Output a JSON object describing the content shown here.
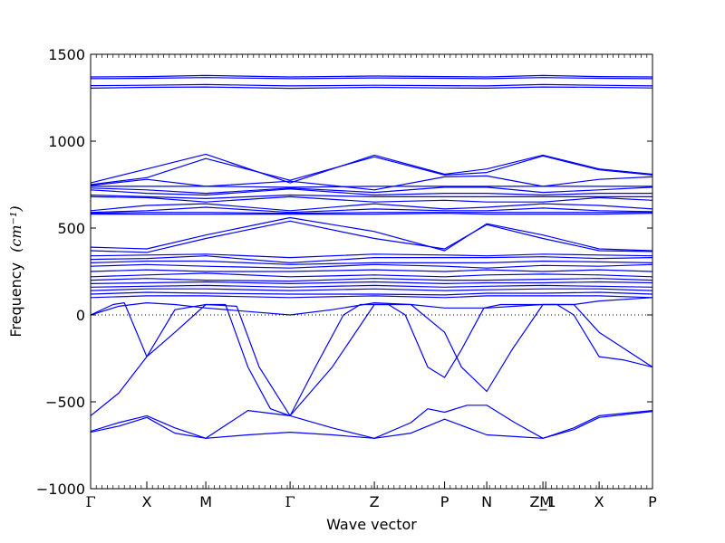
{
  "chart_data": {
    "type": "line",
    "title": "",
    "xlabel": "Wave vector",
    "ylabel": "Frequency",
    "ylabel_unit": "(cm⁻¹)",
    "ylim": [
      -1000,
      1500
    ],
    "yticks": [
      -1000,
      -500,
      0,
      500,
      1000,
      1500
    ],
    "ytick_labels": [
      "−1000",
      "−500",
      "0",
      "500",
      "1000",
      "1500"
    ],
    "xlim": [
      0,
      10
    ],
    "xticks": [
      {
        "x": 0.0,
        "label": "Γ"
      },
      {
        "x": 1.0,
        "label": "X"
      },
      {
        "x": 2.05,
        "label": "M"
      },
      {
        "x": 3.55,
        "label": "Γ"
      },
      {
        "x": 5.05,
        "label": "Z"
      },
      {
        "x": 6.3,
        "label": "P"
      },
      {
        "x": 7.05,
        "label": "N"
      },
      {
        "x": 8.05,
        "label": "Z_1"
      },
      {
        "x": 8.1,
        "label": "M"
      },
      {
        "x": 9.05,
        "label": "X"
      },
      {
        "x": 10.0,
        "label": "P"
      }
    ],
    "grid": false,
    "zero_line": true,
    "line_color": "#0000ff",
    "series": [
      {
        "x": [
          0,
          1,
          2.05,
          3.55,
          5.05,
          6.3,
          7.05,
          8.05,
          9.05,
          10
        ],
        "y": [
          1370,
          1372,
          1378,
          1370,
          1375,
          1372,
          1370,
          1378,
          1372,
          1370
        ]
      },
      {
        "x": [
          0,
          1,
          2.05,
          3.55,
          5.05,
          6.3,
          7.05,
          8.05,
          9.05,
          10
        ],
        "y": [
          1360,
          1362,
          1366,
          1360,
          1364,
          1362,
          1360,
          1366,
          1362,
          1360
        ]
      },
      {
        "x": [
          0,
          1,
          2.05,
          3.55,
          5.05,
          6.3,
          7.05,
          8.05,
          9.05,
          10
        ],
        "y": [
          1320,
          1322,
          1326,
          1318,
          1322,
          1320,
          1318,
          1326,
          1322,
          1318
        ]
      },
      {
        "x": [
          0,
          1,
          2.05,
          3.55,
          5.05,
          6.3,
          7.05,
          8.05,
          9.05,
          10
        ],
        "y": [
          1305,
          1310,
          1312,
          1304,
          1310,
          1306,
          1305,
          1312,
          1310,
          1306
        ]
      },
      {
        "x": [
          0,
          1,
          2.05,
          3.55,
          5.05,
          6.3,
          7.05,
          8.05,
          9.05,
          10
        ],
        "y": [
          760,
          840,
          925,
          760,
          920,
          810,
          840,
          920,
          840,
          810
        ]
      },
      {
        "x": [
          0,
          1,
          2.05,
          3.55,
          5.05,
          6.3,
          7.05,
          8.05,
          9.05,
          10
        ],
        "y": [
          750,
          790,
          900,
          775,
          910,
          805,
          820,
          915,
          835,
          805
        ]
      },
      {
        "x": [
          0,
          1,
          2.05,
          3.55,
          5.05,
          6.3,
          7.05,
          8.05,
          9.05,
          10
        ],
        "y": [
          745,
          780,
          740,
          770,
          720,
          795,
          800,
          740,
          780,
          795
        ]
      },
      {
        "x": [
          0,
          1,
          2.05,
          3.55,
          5.05,
          6.3,
          7.05,
          8.05,
          9.05,
          10
        ],
        "y": [
          740,
          740,
          740,
          735,
          740,
          740,
          740,
          740,
          740,
          740
        ]
      },
      {
        "x": [
          0,
          1,
          2.05,
          3.55,
          5.05,
          6.3,
          7.05,
          8.05,
          9.05,
          10
        ],
        "y": [
          730,
          720,
          700,
          730,
          705,
          735,
          735,
          705,
          720,
          735
        ]
      },
      {
        "x": [
          0,
          1,
          2.05,
          3.55,
          5.05,
          6.3,
          7.05,
          8.05,
          9.05,
          10
        ],
        "y": [
          720,
          700,
          690,
          725,
          690,
          700,
          700,
          690,
          700,
          700
        ]
      },
      {
        "x": [
          0,
          1,
          2.05,
          3.55,
          5.05,
          6.3,
          7.05,
          8.05,
          9.05,
          10
        ],
        "y": [
          690,
          680,
          670,
          690,
          680,
          680,
          680,
          680,
          680,
          680
        ]
      },
      {
        "x": [
          0,
          1,
          2.05,
          3.55,
          5.05,
          6.3,
          7.05,
          8.05,
          9.05,
          10
        ],
        "y": [
          680,
          675,
          650,
          680,
          650,
          660,
          650,
          650,
          675,
          660
        ]
      },
      {
        "x": [
          0,
          1,
          2.05,
          3.55,
          5.05,
          6.3,
          7.05,
          8.05,
          9.05,
          10
        ],
        "y": [
          600,
          630,
          640,
          600,
          640,
          610,
          620,
          640,
          630,
          610
        ]
      },
      {
        "x": [
          0,
          1,
          2.05,
          3.55,
          5.05,
          6.3,
          7.05,
          8.05,
          9.05,
          10
        ],
        "y": [
          590,
          600,
          620,
          590,
          610,
          600,
          600,
          615,
          600,
          595
        ]
      },
      {
        "x": [
          0,
          1,
          2.05,
          3.55,
          5.05,
          6.3,
          7.05,
          8.05,
          9.05,
          10
        ],
        "y": [
          585,
          590,
          590,
          585,
          590,
          590,
          590,
          590,
          590,
          590
        ]
      },
      {
        "x": [
          0,
          1,
          2.05,
          3.55,
          5.05,
          6.3,
          7.05,
          8.05,
          9.05,
          10
        ],
        "y": [
          580,
          580,
          580,
          580,
          580,
          585,
          580,
          580,
          580,
          585
        ]
      },
      {
        "x": [
          0,
          1,
          2.05,
          3.55,
          5.05,
          6.3,
          7.05,
          8.05,
          9.05,
          10
        ],
        "y": [
          390,
          380,
          460,
          560,
          480,
          370,
          525,
          460,
          380,
          370
        ]
      },
      {
        "x": [
          0,
          1,
          2.05,
          3.55,
          5.05,
          6.3,
          7.05,
          8.05,
          9.05,
          10
        ],
        "y": [
          370,
          360,
          440,
          540,
          440,
          380,
          520,
          440,
          370,
          365
        ]
      },
      {
        "x": [
          0,
          1,
          2.05,
          3.55,
          5.05,
          6.3,
          7.05,
          8.05,
          9.05,
          10
        ],
        "y": [
          340,
          345,
          350,
          330,
          350,
          345,
          340,
          350,
          345,
          340
        ]
      },
      {
        "x": [
          0,
          1,
          2.05,
          3.55,
          5.05,
          6.3,
          7.05,
          8.05,
          9.05,
          10
        ],
        "y": [
          320,
          325,
          340,
          300,
          330,
          330,
          330,
          335,
          325,
          330
        ]
      },
      {
        "x": [
          0,
          1,
          2.05,
          3.55,
          5.05,
          6.3,
          7.05,
          8.05,
          9.05,
          10
        ],
        "y": [
          300,
          310,
          310,
          290,
          300,
          300,
          300,
          310,
          305,
          300
        ]
      },
      {
        "x": [
          0,
          1,
          2.05,
          3.55,
          5.05,
          6.3,
          7.05,
          8.05,
          9.05,
          10
        ],
        "y": [
          280,
          290,
          280,
          270,
          290,
          280,
          270,
          285,
          280,
          290
        ]
      },
      {
        "x": [
          0,
          1,
          2.05,
          3.55,
          5.05,
          6.3,
          7.05,
          8.05,
          9.05,
          10
        ],
        "y": [
          250,
          260,
          250,
          250,
          260,
          250,
          260,
          250,
          260,
          250
        ]
      },
      {
        "x": [
          0,
          1,
          2.05,
          3.55,
          5.05,
          6.3,
          7.05,
          8.05,
          9.05,
          10
        ],
        "y": [
          220,
          230,
          240,
          220,
          230,
          220,
          230,
          235,
          230,
          220
        ]
      },
      {
        "x": [
          0,
          1,
          2.05,
          3.55,
          5.05,
          6.3,
          7.05,
          8.05,
          9.05,
          10
        ],
        "y": [
          200,
          210,
          200,
          195,
          210,
          200,
          200,
          205,
          210,
          200
        ]
      },
      {
        "x": [
          0,
          1,
          2.05,
          3.55,
          5.05,
          6.3,
          7.05,
          8.05,
          9.05,
          10
        ],
        "y": [
          180,
          185,
          190,
          180,
          190,
          180,
          185,
          185,
          190,
          185
        ]
      },
      {
        "x": [
          0,
          1,
          2.05,
          3.55,
          5.05,
          6.3,
          7.05,
          8.05,
          9.05,
          10
        ],
        "y": [
          160,
          165,
          170,
          160,
          170,
          160,
          165,
          170,
          165,
          160
        ]
      },
      {
        "x": [
          0,
          1,
          2.05,
          3.55,
          5.05,
          6.3,
          7.05,
          8.05,
          9.05,
          10
        ],
        "y": [
          140,
          150,
          150,
          140,
          150,
          140,
          145,
          150,
          150,
          140
        ]
      },
      {
        "x": [
          0,
          1,
          2.05,
          3.55,
          5.05,
          6.3,
          7.05,
          8.05,
          9.05,
          10
        ],
        "y": [
          120,
          130,
          125,
          120,
          120,
          115,
          125,
          125,
          130,
          120
        ]
      },
      {
        "x": [
          0,
          1,
          2.05,
          3.55,
          5.05,
          6.3,
          7.05,
          8.05,
          9.05,
          10
        ],
        "y": [
          100,
          110,
          110,
          100,
          110,
          100,
          110,
          110,
          110,
          100
        ]
      },
      {
        "x": [
          0,
          0.5,
          1,
          1.5,
          2.05,
          2.8,
          3.55,
          4.3,
          5.05,
          5.7,
          6.3,
          6.7,
          7.05,
          7.55,
          8.05,
          8.6,
          9.05,
          10
        ],
        "y": [
          0,
          50,
          70,
          60,
          40,
          20,
          0,
          30,
          70,
          60,
          40,
          40,
          40,
          50,
          60,
          60,
          80,
          100
        ]
      },
      {
        "x": [
          0,
          0.4,
          0.6,
          1,
          1.5,
          2.05,
          2.4,
          2.8,
          3.2,
          3.55,
          4.0,
          4.5,
          4.8,
          5.05,
          5.3,
          5.6,
          6.0,
          6.3,
          6.6,
          7.0,
          7.3,
          7.6,
          7.8,
          8.05,
          8.3,
          8.6,
          9.05,
          9.5,
          10
        ],
        "y": [
          0,
          60,
          70,
          -240,
          -100,
          60,
          60,
          -300,
          -540,
          -580,
          -300,
          0,
          60,
          60,
          60,
          0,
          -300,
          -360,
          -200,
          40,
          60,
          60,
          60,
          60,
          60,
          0,
          -240,
          -260,
          -300
        ]
      },
      {
        "x": [
          0,
          0.5,
          1,
          1.5,
          2.05,
          2.6,
          3.0,
          3.55,
          4.3,
          5.05,
          5.7,
          6.3,
          6.6,
          7.05,
          7.5,
          8.05,
          8.6,
          9.05,
          10
        ],
        "y": [
          -580,
          -450,
          -240,
          30,
          60,
          50,
          -300,
          -580,
          -300,
          60,
          60,
          -100,
          -300,
          -440,
          -200,
          60,
          60,
          -100,
          -300
        ]
      },
      {
        "x": [
          0,
          0.5,
          1,
          1.5,
          2.05,
          2.8,
          3.55,
          4.3,
          5.05,
          5.7,
          6.0,
          6.3,
          6.7,
          7.05,
          7.55,
          8.05,
          8.6,
          9.05,
          10
        ],
        "y": [
          -670,
          -620,
          -580,
          -650,
          -710,
          -550,
          -580,
          -650,
          -710,
          -620,
          -540,
          -560,
          -520,
          -520,
          -620,
          -710,
          -650,
          -580,
          -550
        ]
      },
      {
        "x": [
          0,
          0.5,
          1,
          1.5,
          2.05,
          2.8,
          3.55,
          4.3,
          5.05,
          5.7,
          6.3,
          7.05,
          7.55,
          8.05,
          8.6,
          9.05,
          10
        ],
        "y": [
          -675,
          -640,
          -590,
          -680,
          -710,
          -690,
          -675,
          -690,
          -710,
          -680,
          -600,
          -690,
          -700,
          -710,
          -660,
          -590,
          -555
        ]
      }
    ]
  }
}
